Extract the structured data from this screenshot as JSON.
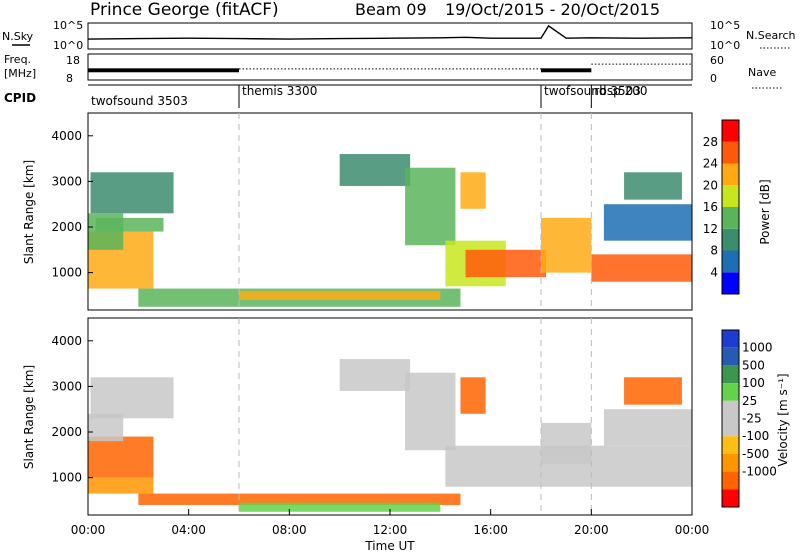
{
  "header": {
    "station": "Prince George (fitACF)",
    "beam": "Beam 09",
    "dates": "19/Oct/2015 - 20/Oct/2015"
  },
  "colors": {
    "power": [
      "#0000ff",
      "#1e6eb4",
      "#3c8c6e",
      "#5ab45a",
      "#c8e61e",
      "#ffaa14",
      "#ff5a0a",
      "#ff0000"
    ],
    "velocity": [
      "#ff0000",
      "#ff6400",
      "#ff9600",
      "#ffbe14",
      "#c8c8c8",
      "#c8c8c8",
      "#64d24b",
      "#3c9650",
      "#285ab4",
      "#1e3cd2"
    ],
    "gray_ground_scatter": "#c8c8c8"
  },
  "chart_data": [
    {
      "type": "line",
      "name": "noise-panel",
      "left_label": "N.Sky",
      "right_label": "N.Search",
      "left_ticks": [
        "10^5",
        "10^0"
      ],
      "right_ticks": [
        "10^5",
        "10^0"
      ],
      "series": [
        {
          "name": "N.Sky",
          "style": "solid",
          "x": [
            0,
            2,
            4,
            6,
            8,
            10,
            12,
            14,
            15,
            16,
            18,
            18.3,
            19,
            20,
            22,
            24
          ],
          "y": [
            1.8,
            1.9,
            2.0,
            1.9,
            1.8,
            1.9,
            2.0,
            2.1,
            2.2,
            2.0,
            2.0,
            4.8,
            2.0,
            2.1,
            2.0,
            2.1
          ]
        }
      ],
      "xlim": [
        0,
        24
      ]
    },
    {
      "type": "line",
      "name": "freq-panel",
      "left_label_top": "Freq.",
      "left_label_bottom": "[MHz]",
      "right_label": "Nave",
      "left_ticks": [
        "18",
        "8"
      ],
      "right_ticks": [
        "60",
        "0"
      ],
      "series": [
        {
          "name": "Freq",
          "style": "band",
          "segments": [
            [
              0,
              6.0,
              10.6,
              12.4
            ],
            [
              18.0,
              20.0,
              10.6,
              12.4
            ]
          ]
        },
        {
          "name": "Nave",
          "style": "dotted",
          "segments": [
            [
              6.0,
              18.0,
              25
            ],
            [
              20.0,
              24,
              38
            ]
          ]
        }
      ],
      "xlim": [
        0,
        24
      ]
    },
    {
      "type": "table",
      "name": "cpid-bar",
      "label": "CPID",
      "modes": [
        {
          "start": 0,
          "label": "twofsound 3503"
        },
        {
          "start": 6.0,
          "label": "themis 3300"
        },
        {
          "start": 18.0,
          "label": "twofsound 3503"
        },
        {
          "start": 20.0,
          "label": "rbsp 200"
        }
      ]
    },
    {
      "type": "heatmap",
      "name": "power-panel",
      "xlabel": "",
      "ylabel": "Slant Range [km]",
      "xlim": [
        0,
        24
      ],
      "ylim": [
        180,
        4500
      ],
      "yticks": [
        1000,
        2000,
        3000,
        4000
      ],
      "colorbar": {
        "label": "Power [dB]",
        "ticks": [
          4,
          8,
          12,
          16,
          20,
          24,
          28
        ],
        "range": [
          0,
          32
        ]
      },
      "regions": [
        {
          "t0": 0.0,
          "t1": 2.6,
          "r0": 650,
          "r1": 1900,
          "value": 22
        },
        {
          "t0": 0.0,
          "t1": 1.4,
          "r0": 1500,
          "r1": 2300,
          "value": 12
        },
        {
          "t0": 0.1,
          "t1": 3.4,
          "r0": 2300,
          "r1": 3200,
          "value": 8
        },
        {
          "t0": 0.3,
          "t1": 3.0,
          "r0": 1900,
          "r1": 2200,
          "value": 13
        },
        {
          "t0": 2.0,
          "t1": 14.8,
          "r0": 250,
          "r1": 650,
          "value": 14
        },
        {
          "t0": 6.0,
          "t1": 14.0,
          "r0": 400,
          "r1": 600,
          "value": 22
        },
        {
          "t0": 10.0,
          "t1": 12.8,
          "r0": 2900,
          "r1": 3600,
          "value": 8
        },
        {
          "t0": 12.6,
          "t1": 14.6,
          "r0": 1600,
          "r1": 3300,
          "value": 14
        },
        {
          "t0": 14.2,
          "t1": 16.6,
          "r0": 700,
          "r1": 1700,
          "value": 18
        },
        {
          "t0": 14.8,
          "t1": 15.8,
          "r0": 2400,
          "r1": 3200,
          "value": 20
        },
        {
          "t0": 15.0,
          "t1": 18.2,
          "r0": 900,
          "r1": 1500,
          "value": 24
        },
        {
          "t0": 18.0,
          "t1": 20.0,
          "r0": 1000,
          "r1": 2200,
          "value": 22
        },
        {
          "t0": 20.0,
          "t1": 24.0,
          "r0": 800,
          "r1": 1400,
          "value": 27
        },
        {
          "t0": 20.5,
          "t1": 24.0,
          "r0": 1700,
          "r1": 2500,
          "value": 6
        },
        {
          "t0": 21.3,
          "t1": 23.6,
          "r0": 2600,
          "r1": 3200,
          "value": 8
        }
      ]
    },
    {
      "type": "heatmap",
      "name": "velocity-panel",
      "xlabel": "Time UT",
      "ylabel": "Slant Range [km]",
      "xlim": [
        0,
        24
      ],
      "ylim": [
        180,
        4500
      ],
      "yticks": [
        1000,
        2000,
        3000,
        4000
      ],
      "xticks": [
        "00:00",
        "04:00",
        "08:00",
        "12:00",
        "16:00",
        "20:00",
        "00:00"
      ],
      "xtick_values": [
        0,
        4,
        8,
        12,
        16,
        20,
        24
      ],
      "colorbar": {
        "label": "Velocity [m s⁻¹]",
        "ticks": [
          "1000",
          "500",
          "100",
          "25",
          "-25",
          "-100",
          "-500",
          "-1000"
        ]
      },
      "regions": [
        {
          "t0": 0.0,
          "t1": 2.6,
          "r0": 1000,
          "r1": 1900,
          "value": -300
        },
        {
          "t0": 0.0,
          "t1": 1.4,
          "r0": 1800,
          "r1": 2400,
          "value": 0
        },
        {
          "t0": 0.1,
          "t1": 3.4,
          "r0": 2300,
          "r1": 3200,
          "value": 0
        },
        {
          "t0": 0.0,
          "t1": 2.6,
          "r0": 650,
          "r1": 1000,
          "value": -80
        },
        {
          "t0": 2.0,
          "t1": 14.8,
          "r0": 400,
          "r1": 650,
          "value": -150
        },
        {
          "t0": 6.0,
          "t1": 14.0,
          "r0": 250,
          "r1": 450,
          "value": 60
        },
        {
          "t0": 10.0,
          "t1": 12.8,
          "r0": 2900,
          "r1": 3600,
          "value": 0
        },
        {
          "t0": 12.6,
          "t1": 14.6,
          "r0": 1600,
          "r1": 3300,
          "value": 0
        },
        {
          "t0": 14.2,
          "t1": 24.0,
          "r0": 800,
          "r1": 1700,
          "value": 0
        },
        {
          "t0": 14.8,
          "t1": 15.8,
          "r0": 2400,
          "r1": 3200,
          "value": -200
        },
        {
          "t0": 18.0,
          "t1": 20.0,
          "r0": 1300,
          "r1": 2200,
          "value": 0
        },
        {
          "t0": 20.5,
          "t1": 24.0,
          "r0": 1700,
          "r1": 2500,
          "value": 0
        },
        {
          "t0": 21.3,
          "t1": 23.6,
          "r0": 2600,
          "r1": 3200,
          "value": -300
        }
      ]
    }
  ]
}
